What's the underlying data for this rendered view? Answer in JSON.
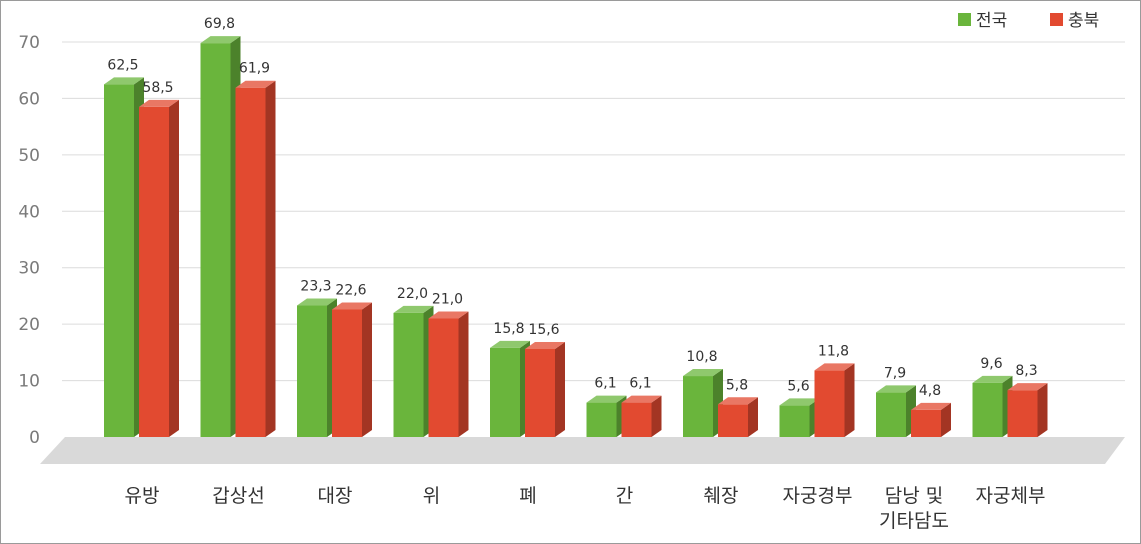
{
  "chart_data": {
    "type": "bar",
    "title": "",
    "xlabel": "",
    "ylabel": "",
    "ylim": [
      0,
      70
    ],
    "yticks": [
      0,
      10,
      20,
      30,
      40,
      50,
      60,
      70
    ],
    "grid": true,
    "legend_position": "top-right",
    "categories": [
      [
        "유방"
      ],
      [
        "갑상선"
      ],
      [
        "대장"
      ],
      [
        "위"
      ],
      [
        "폐"
      ],
      [
        "간"
      ],
      [
        "췌장"
      ],
      [
        "자궁경부"
      ],
      [
        "담낭 및",
        "기타담도"
      ],
      [
        "자궁체부"
      ]
    ],
    "series": [
      {
        "name": "전국",
        "color": "#6ab53c",
        "values": [
          62.5,
          69.8,
          23.3,
          22.0,
          15.8,
          6.1,
          10.8,
          5.6,
          7.9,
          9.6
        ],
        "labels": [
          "62,5",
          "69,8",
          "23,3",
          "22,0",
          "15,8",
          "6,1",
          "10,8",
          "5,6",
          "7,9",
          "9,6"
        ]
      },
      {
        "name": "충북",
        "color": "#e24a30",
        "values": [
          58.5,
          61.9,
          22.6,
          21.0,
          15.6,
          6.1,
          5.8,
          11.8,
          4.8,
          8.3
        ],
        "labels": [
          "58,5",
          "61,9",
          "22,6",
          "21,0",
          "15,6",
          "6,1",
          "5,8",
          "11,8",
          "4,8",
          "8,3"
        ]
      }
    ]
  }
}
